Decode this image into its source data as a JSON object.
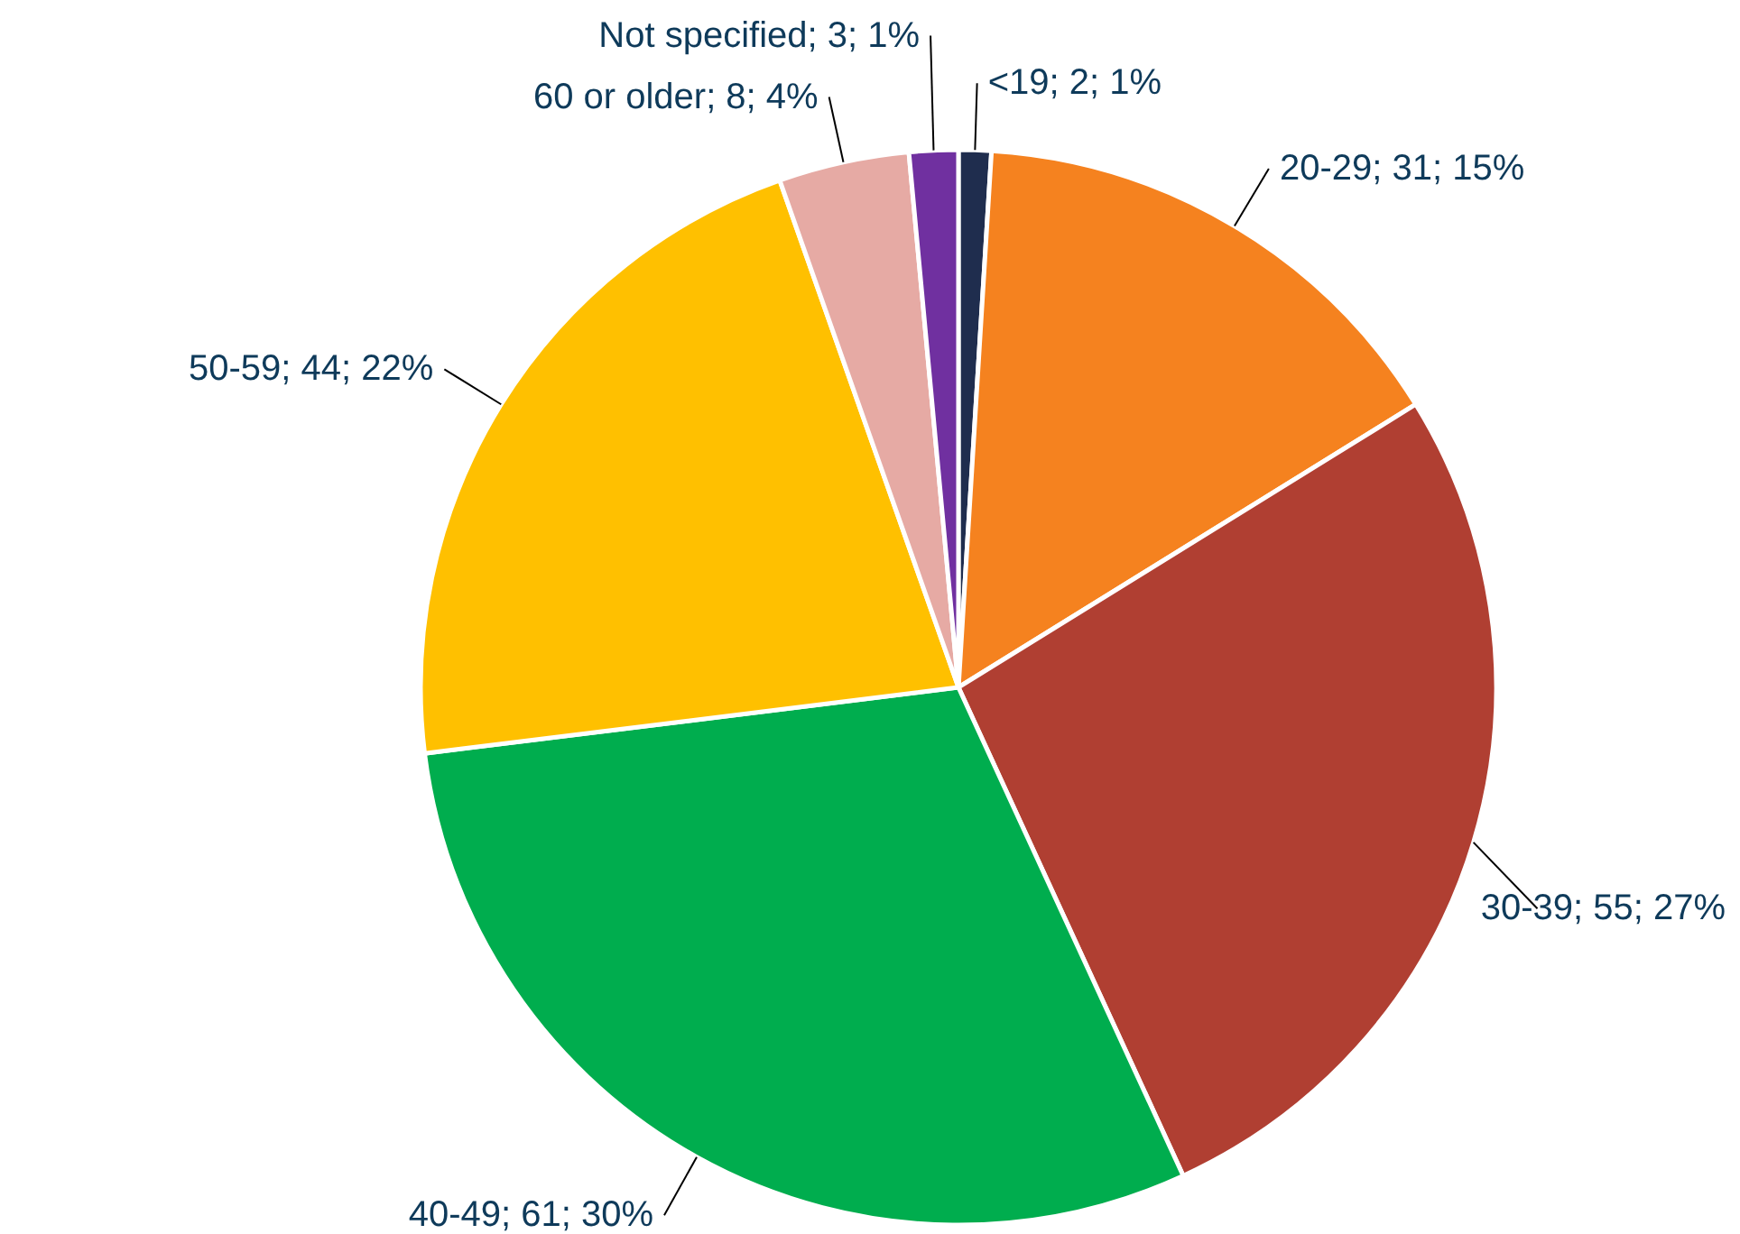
{
  "chart_data": {
    "type": "pie",
    "categories": [
      "<19",
      "20-29",
      "30-39",
      "40-49",
      "50-59",
      "60 or older",
      "Not specified"
    ],
    "values": [
      2,
      31,
      55,
      61,
      44,
      8,
      3
    ],
    "colors": [
      "#1f2d4e",
      "#f5821f",
      "#b03f32",
      "#00ad4e",
      "#ffc000",
      "#e6aaa4",
      "#7030a0"
    ],
    "value_labels": [
      "2; 1%",
      "31; 15%",
      "55; 27%",
      "61; 30%",
      "44; 22%",
      "8; 4%",
      "3; 1%"
    ]
  }
}
